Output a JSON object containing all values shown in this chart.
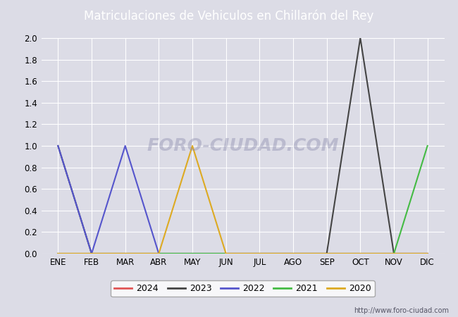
{
  "title": "Matriculaciones de Vehiculos en Chillarón del Rey",
  "title_color": "#ffffff",
  "title_bg_color": "#4169b0",
  "months": [
    "ENE",
    "FEB",
    "MAR",
    "ABR",
    "MAY",
    "JUN",
    "JUL",
    "AGO",
    "SEP",
    "OCT",
    "NOV",
    "DIC"
  ],
  "series": {
    "2024": {
      "color": "#e05555",
      "values": [
        0,
        0,
        0,
        0,
        0,
        0,
        0,
        0,
        0,
        0,
        0,
        0
      ]
    },
    "2023": {
      "color": "#444444",
      "values": [
        1,
        0,
        0,
        0,
        0,
        0,
        0,
        0,
        0,
        2,
        0,
        0
      ]
    },
    "2022": {
      "color": "#5555cc",
      "values": [
        1,
        0,
        1,
        0,
        0,
        0,
        0,
        0,
        0,
        0,
        0,
        0
      ]
    },
    "2021": {
      "color": "#44bb44",
      "values": [
        0,
        0,
        0,
        0,
        0,
        0,
        0,
        0,
        0,
        0,
        0,
        1
      ]
    },
    "2020": {
      "color": "#ddaa22",
      "values": [
        0,
        0,
        0,
        0,
        1,
        0,
        0,
        0,
        0,
        0,
        0,
        0
      ]
    }
  },
  "ylim": [
    0,
    2.0
  ],
  "yticks": [
    0.0,
    0.2,
    0.4,
    0.6,
    0.8,
    1.0,
    1.2,
    1.4,
    1.6,
    1.8,
    2.0
  ],
  "bg_color": "#dcdce6",
  "plot_bg_color": "#dcdce6",
  "grid_color": "#ffffff",
  "watermark": "FORO-CIUDAD.COM",
  "url": "http://www.foro-ciudad.com",
  "legend_order": [
    "2024",
    "2023",
    "2022",
    "2021",
    "2020"
  ]
}
